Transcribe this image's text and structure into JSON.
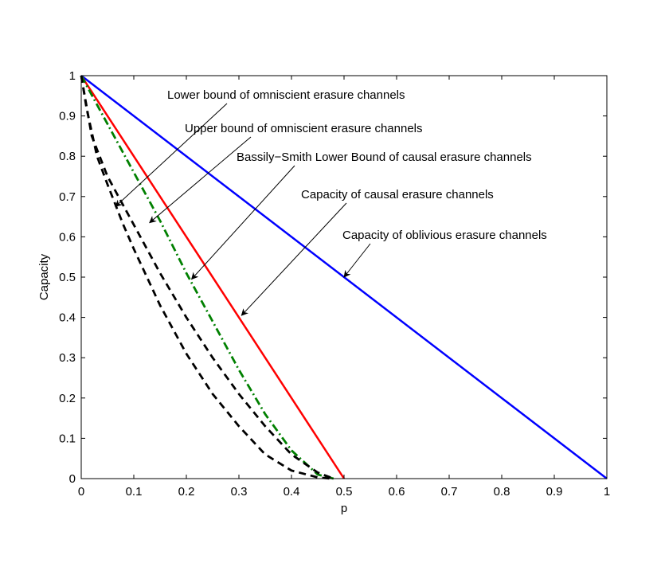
{
  "chart_data": {
    "type": "line",
    "title": "",
    "xlabel": "p",
    "ylabel": "Capacity",
    "xlim": [
      0,
      1
    ],
    "ylim": [
      0,
      1
    ],
    "grid": false,
    "x_ticks": [
      "0",
      "0.1",
      "0.2",
      "0.3",
      "0.4",
      "0.5",
      "0.6",
      "0.7",
      "0.8",
      "0.9",
      "1"
    ],
    "y_ticks": [
      "0",
      "0.1",
      "0.2",
      "0.3",
      "0.4",
      "0.5",
      "0.6",
      "0.7",
      "0.8",
      "0.9",
      "1"
    ],
    "series": [
      {
        "name": "Capacity of oblivious erasure channels",
        "color": "#0000ff",
        "style": "solid",
        "x": [
          0,
          1
        ],
        "y": [
          1,
          0
        ]
      },
      {
        "name": "Capacity of causal erasure channels",
        "color": "#ff0000",
        "style": "solid",
        "x": [
          0,
          0.5
        ],
        "y": [
          1,
          0
        ]
      },
      {
        "name": "Bassily−Smith Lower Bound of causal erasure channels",
        "color": "#008000",
        "style": "dashdot",
        "x": [
          0,
          0.05,
          0.1,
          0.15,
          0.2,
          0.25,
          0.3,
          0.35,
          0.4,
          0.45,
          0.48
        ],
        "y": [
          1,
          0.88,
          0.76,
          0.64,
          0.51,
          0.39,
          0.27,
          0.16,
          0.07,
          0.01,
          0
        ]
      },
      {
        "name": "Upper bound of omniscient erasure channels",
        "color": "#000000",
        "style": "dashed",
        "x": [
          0,
          0.02,
          0.05,
          0.1,
          0.15,
          0.2,
          0.25,
          0.3,
          0.35,
          0.4,
          0.45,
          0.48
        ],
        "y": [
          1,
          0.85,
          0.75,
          0.63,
          0.51,
          0.4,
          0.3,
          0.21,
          0.13,
          0.06,
          0.015,
          0
        ]
      },
      {
        "name": "Lower bound of omniscient erasure channels",
        "color": "#000000",
        "style": "dashed",
        "x": [
          0,
          0.01,
          0.03,
          0.05,
          0.08,
          0.1,
          0.15,
          0.2,
          0.25,
          0.3,
          0.35,
          0.4,
          0.45,
          0.475
        ],
        "y": [
          1,
          0.92,
          0.8,
          0.73,
          0.63,
          0.57,
          0.43,
          0.31,
          0.21,
          0.13,
          0.06,
          0.02,
          0.003,
          0
        ]
      }
    ],
    "annotations": [
      {
        "text": "Lower bound of omniscient erasure channels",
        "target_x": 0.065,
        "target_y": 0.675
      },
      {
        "text": "Upper bound of omniscient erasure channels",
        "target_x": 0.13,
        "target_y": 0.635
      },
      {
        "text": "Bassily−Smith Lower Bound of causal erasure channels",
        "target_x": 0.21,
        "target_y": 0.495
      },
      {
        "text": "Capacity of causal erasure channels",
        "target_x": 0.305,
        "target_y": 0.405
      },
      {
        "text": "Capacity of oblivious erasure channels",
        "target_x": 0.5,
        "target_y": 0.5
      }
    ]
  }
}
